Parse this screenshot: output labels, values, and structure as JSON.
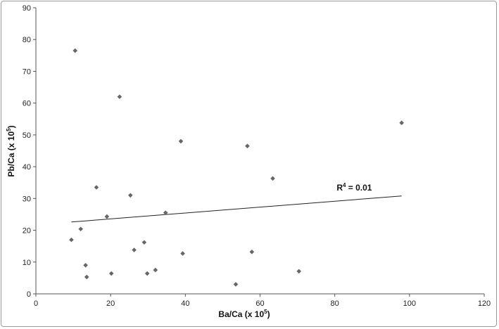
{
  "chart_data": {
    "type": "scatter",
    "xlim": [
      0,
      120
    ],
    "ylim": [
      0,
      90
    ],
    "x_ticks": [
      0,
      20,
      40,
      60,
      80,
      100,
      120
    ],
    "y_ticks": [
      0,
      10,
      20,
      30,
      40,
      50,
      60,
      70,
      80,
      90
    ],
    "x_tick_labels": [
      "0",
      "20",
      "40",
      "60",
      "80",
      "100",
      "120"
    ],
    "y_tick_labels": [
      "0",
      "10",
      "20",
      "30",
      "40",
      "50",
      "60",
      "70",
      "80",
      "90"
    ],
    "xlabel_base": "Ba/Ca (x 10",
    "xlabel_exp": "5",
    "xlabel_end": ")",
    "ylabel_base": "Pb/Ca (x 10",
    "ylabel_exp": "5",
    "ylabel_end": ")",
    "grid": false,
    "marker": "diamond",
    "marker_color": "#666666",
    "x": [
      9.5,
      10.5,
      12,
      13.3,
      13.6,
      16.2,
      19,
      20.2,
      22.4,
      25.3,
      26.3,
      29,
      29.8,
      32,
      34.7,
      38.8,
      39.3,
      53.5,
      56.6,
      57.8,
      63.4,
      70.4,
      97.9
    ],
    "y": [
      17,
      76.5,
      20.4,
      9,
      5.3,
      33.5,
      24.3,
      6.4,
      62,
      31,
      13.8,
      16.2,
      6.4,
      7.5,
      25.5,
      48,
      12.7,
      3,
      46.5,
      13.2,
      36.3,
      7.1,
      53.8
    ],
    "trendline": {
      "x": [
        9.5,
        97.9
      ],
      "y": [
        22.6,
        30.8
      ],
      "color": "#222222"
    },
    "annotation": {
      "base": "R",
      "exp": "4",
      "rest": " = 0.01",
      "x": 80.5,
      "y": 32.5
    }
  }
}
